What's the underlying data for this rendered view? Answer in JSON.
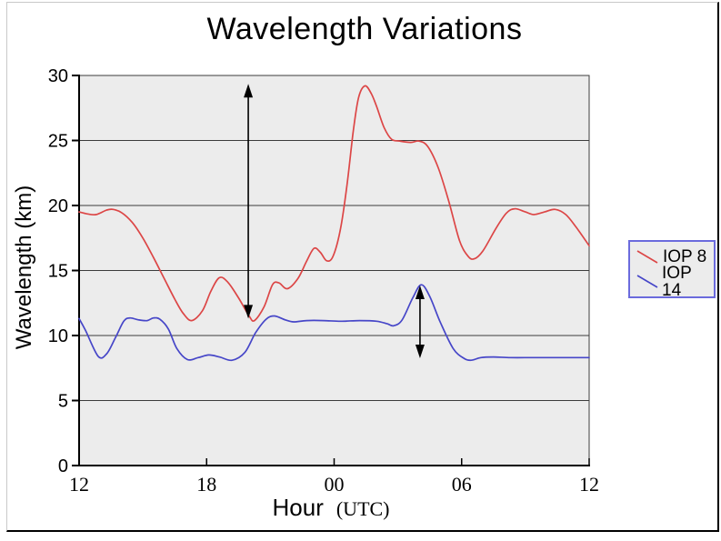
{
  "chart_data": {
    "type": "line",
    "title": "Wavelength Variations",
    "xlabel": "Hour",
    "xlabel_units": "(UTC)",
    "ylabel": "Wavelength (km)",
    "x_range_hours": [
      0,
      24
    ],
    "ylim": [
      0,
      30
    ],
    "grid": "horizontal",
    "legend": {
      "position": "right-outside",
      "border_color": "#6b6bdd",
      "bg": "#ececec"
    },
    "plot_bg": "#ececec",
    "grid_color": "#3c3c3c",
    "x_ticks": [
      {
        "offset": 0,
        "label": "12"
      },
      {
        "offset": 6,
        "label": "18"
      },
      {
        "offset": 12,
        "label": "00"
      },
      {
        "offset": 18,
        "label": "06"
      },
      {
        "offset": 24,
        "label": "12"
      }
    ],
    "y_ticks": [
      0,
      5,
      10,
      15,
      20,
      25,
      30
    ],
    "series": [
      {
        "name": "IOP 8",
        "color": "#dc4646",
        "x_hours_from_first_tick": [
          0.0,
          0.4,
          0.8,
          1.3,
          1.6,
          2.0,
          2.5,
          3.0,
          3.5,
          4.0,
          4.5,
          4.9,
          5.3,
          5.8,
          6.2,
          6.6,
          7.0,
          7.5,
          8.0,
          8.25,
          8.7,
          9.1,
          9.4,
          9.8,
          10.3,
          10.7,
          11.05,
          11.35,
          11.65,
          11.95,
          12.3,
          12.6,
          12.9,
          13.15,
          13.45,
          13.75,
          14.0,
          14.35,
          14.7,
          15.1,
          15.6,
          16.0,
          16.4,
          16.9,
          17.4,
          17.9,
          18.3,
          18.6,
          19.0,
          19.6,
          20.1,
          20.5,
          21.0,
          21.4,
          21.9,
          22.4,
          22.9,
          23.4,
          24.0
        ],
        "wavelength_km": [
          19.5,
          19.35,
          19.3,
          19.65,
          19.7,
          19.45,
          18.7,
          17.5,
          16.0,
          14.4,
          12.8,
          11.7,
          11.15,
          11.9,
          13.4,
          14.45,
          14.1,
          12.9,
          11.5,
          11.15,
          12.2,
          13.9,
          14.05,
          13.6,
          14.4,
          15.7,
          16.7,
          16.4,
          15.75,
          16.1,
          18.2,
          21.5,
          25.7,
          28.3,
          29.2,
          28.6,
          27.6,
          26.0,
          25.1,
          24.95,
          24.85,
          24.95,
          24.55,
          22.9,
          20.3,
          17.3,
          16.1,
          15.9,
          16.5,
          18.2,
          19.4,
          19.75,
          19.5,
          19.3,
          19.5,
          19.7,
          19.3,
          18.3,
          16.9
        ]
      },
      {
        "name": "IOP 14",
        "color": "#4646c8",
        "x_hours_from_first_tick": [
          0.0,
          0.3,
          0.9,
          1.3,
          1.7,
          2.1,
          2.4,
          2.8,
          3.2,
          3.5,
          3.8,
          4.2,
          4.6,
          5.1,
          5.6,
          6.1,
          6.6,
          7.2,
          7.8,
          8.3,
          8.8,
          9.2,
          9.7,
          10.1,
          10.7,
          11.5,
          12.3,
          13.2,
          14.0,
          14.5,
          14.8,
          15.2,
          15.7,
          16.1,
          16.5,
          17.0,
          17.6,
          18.1,
          18.45,
          18.9,
          19.5,
          20.3,
          21.3,
          22.3,
          23.2,
          24.0
        ],
        "wavelength_km": [
          11.3,
          10.4,
          8.4,
          8.6,
          9.8,
          11.1,
          11.35,
          11.2,
          11.15,
          11.35,
          11.25,
          10.5,
          9.0,
          8.15,
          8.3,
          8.5,
          8.35,
          8.1,
          8.7,
          10.2,
          11.25,
          11.5,
          11.2,
          11.05,
          11.15,
          11.15,
          11.1,
          11.15,
          11.1,
          10.9,
          10.75,
          11.2,
          12.9,
          13.9,
          13.0,
          11.0,
          9.0,
          8.25,
          8.1,
          8.3,
          8.35,
          8.3,
          8.3,
          8.3,
          8.3,
          8.3
        ]
      }
    ],
    "annotations": [
      {
        "type": "double-arrow",
        "x_hours": 7.96,
        "y_from_km": 11.3,
        "y_to_km": 29.35,
        "color": "#000000"
      },
      {
        "type": "double-arrow",
        "x_hours": 16.04,
        "y_from_km": 8.25,
        "y_to_km": 13.85,
        "color": "#000000"
      }
    ]
  }
}
